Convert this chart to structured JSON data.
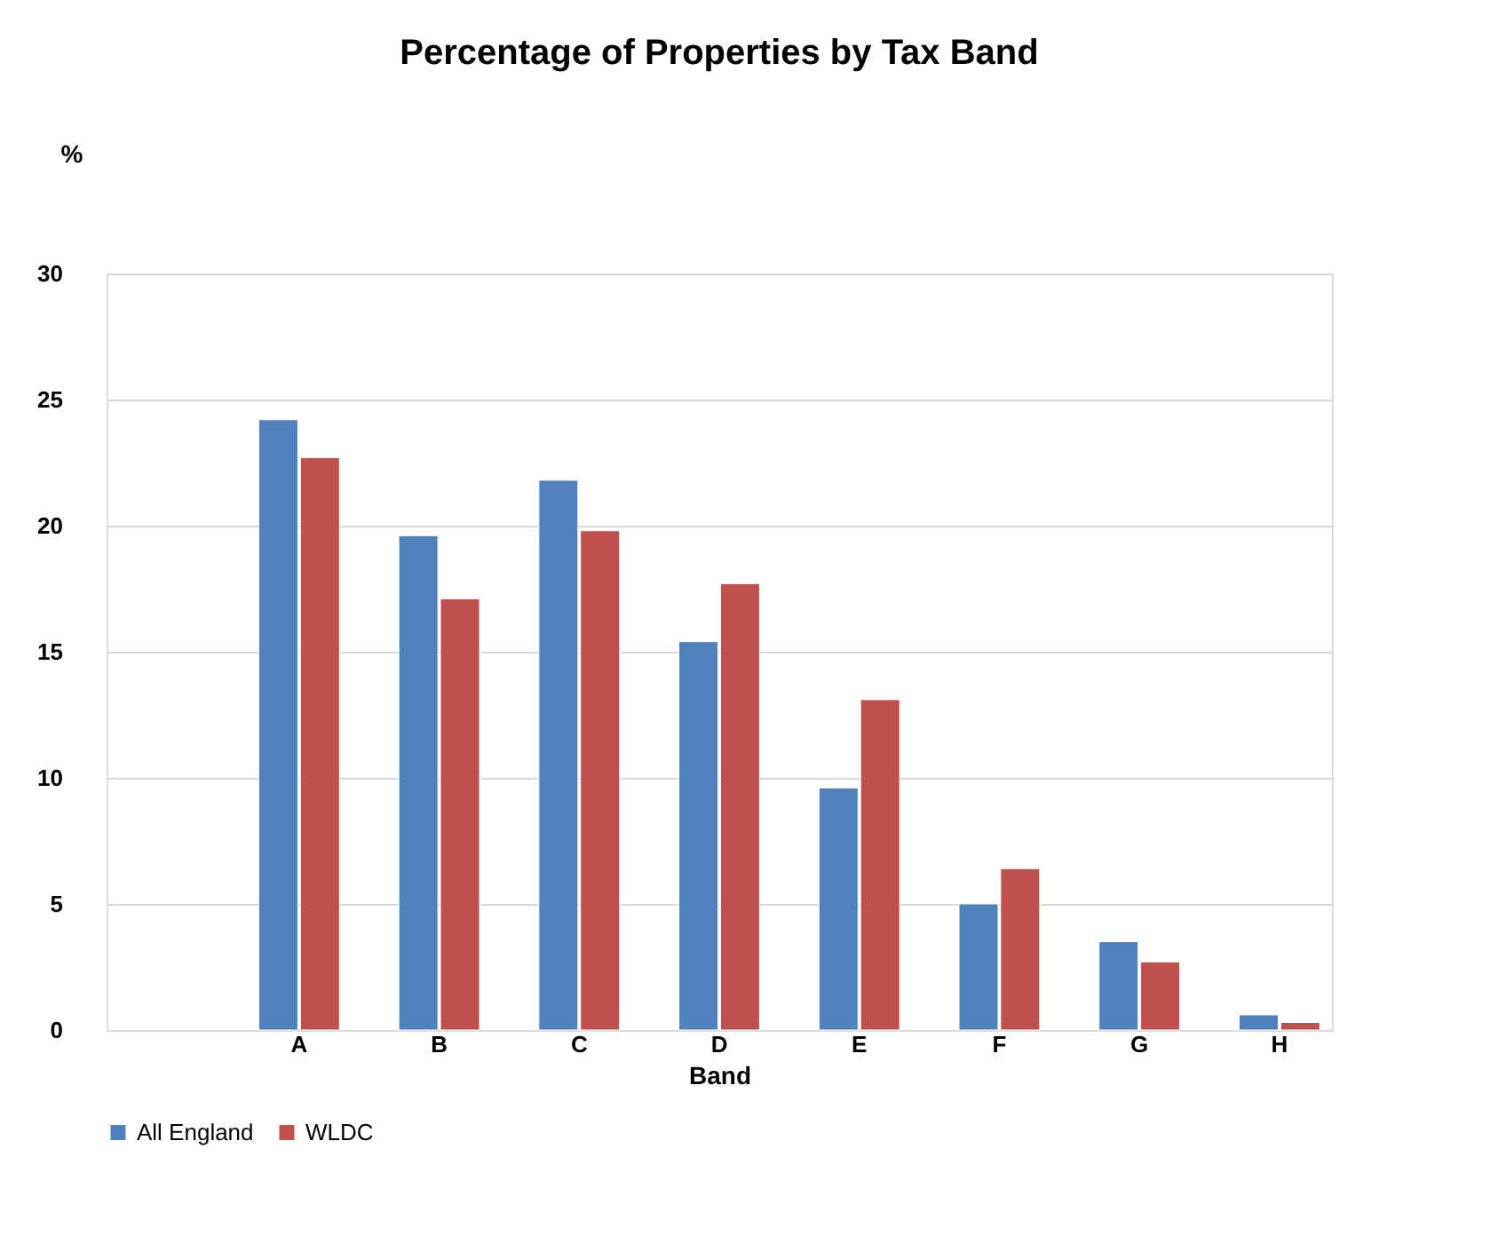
{
  "chart_data": {
    "type": "bar",
    "title": "Percentage of Properties by Tax Band",
    "xlabel": "Band",
    "ylabel": "%",
    "categories": [
      null,
      "A",
      "B",
      "C",
      "D",
      "E",
      "F",
      "G",
      "H"
    ],
    "series": [
      {
        "name": "All England",
        "color": "#4f81bd",
        "values": [
          null,
          24.2,
          19.6,
          21.8,
          15.4,
          9.6,
          5.0,
          3.5,
          0.6
        ]
      },
      {
        "name": "WLDC",
        "color": "#c0504d",
        "values": [
          null,
          22.7,
          17.1,
          19.8,
          17.7,
          13.1,
          6.4,
          2.7,
          0.3
        ]
      }
    ],
    "ylim": [
      0,
      30
    ],
    "yticks": [
      0,
      5,
      10,
      15,
      20,
      25,
      30
    ],
    "grid": "y",
    "legend": "bottom"
  }
}
